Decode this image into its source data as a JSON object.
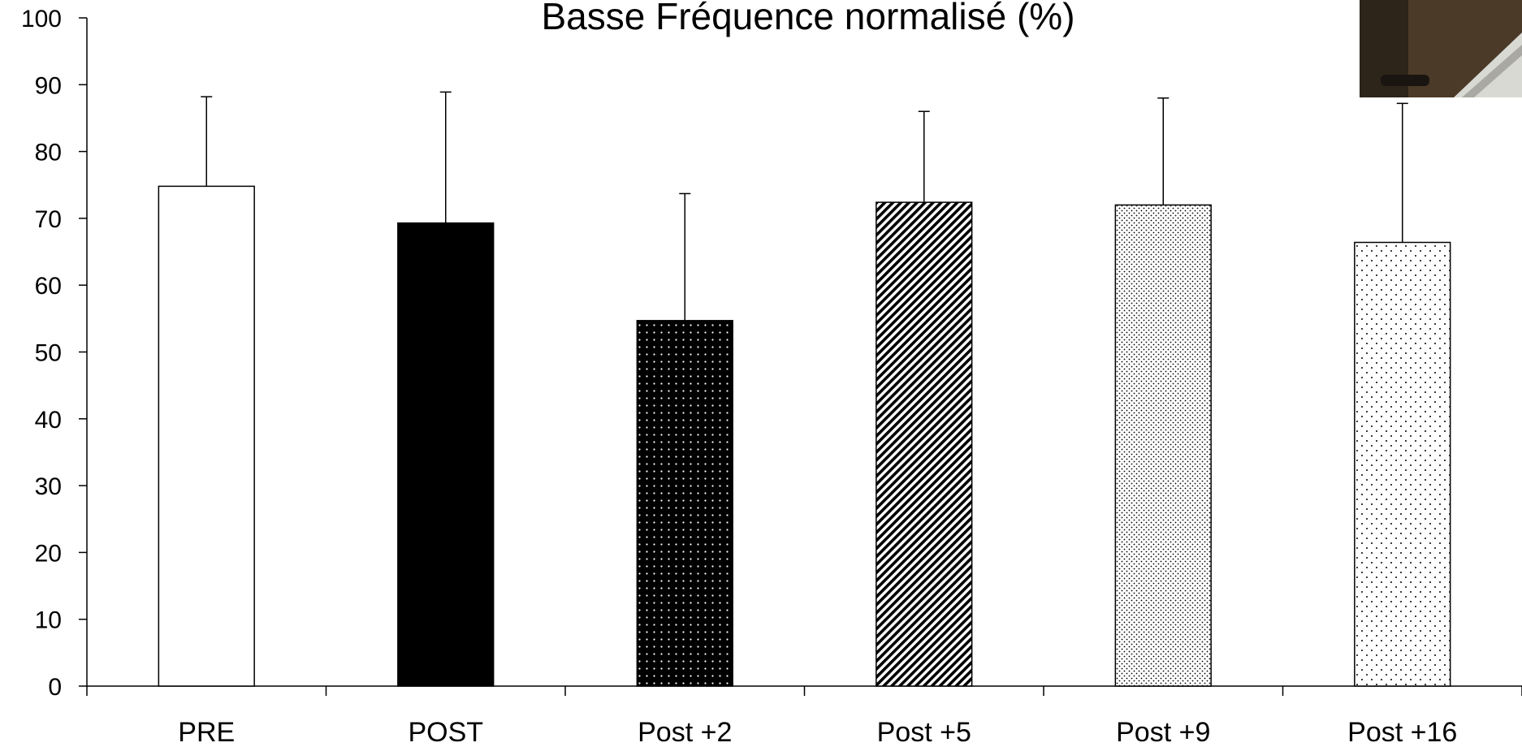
{
  "chart_data": {
    "type": "bar",
    "title": "Basse Fréquence normalisé (%)",
    "xlabel": "",
    "ylabel": "",
    "categories": [
      "PRE",
      "POST",
      "Post +2",
      "Post +5",
      "Post +9",
      "Post +16"
    ],
    "values": [
      74.8,
      69.3,
      54.7,
      72.4,
      72.0,
      66.4
    ],
    "error_upper": [
      88.2,
      88.9,
      73.7,
      86.0,
      88.0,
      87.2
    ],
    "ylim": [
      0,
      100
    ],
    "yticks": [
      0,
      10,
      20,
      30,
      40,
      50,
      60,
      70,
      80,
      90,
      100
    ],
    "grid": false,
    "legend": "none",
    "bar_fills": [
      "white",
      "black",
      "dots-on-black",
      "diagonal-hatch",
      "dense-dots",
      "sparse-dots"
    ],
    "colors": {
      "stroke": "#000000",
      "background": "#ffffff"
    }
  },
  "photo": {
    "icon": "photo-thumbnail"
  }
}
